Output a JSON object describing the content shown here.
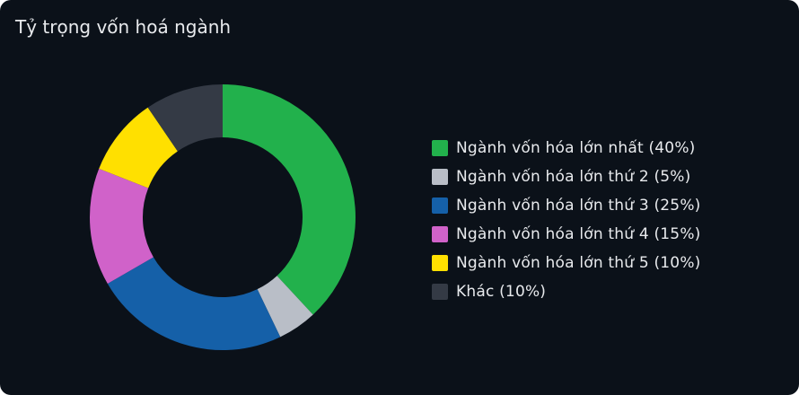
{
  "chart_data": {
    "type": "pie",
    "title": "Tỷ trọng vốn hoá ngành",
    "categories": [
      "Ngành vốn hóa lớn nhất",
      "Ngành vốn hóa lớn thứ 2",
      "Ngành vốn hóa lớn thứ 3",
      "Ngành vốn hóa lớn thứ 4",
      "Ngành vốn hóa lớn thứ 5",
      "Khác"
    ],
    "values": [
      40,
      5,
      25,
      15,
      10,
      10
    ],
    "legend_labels": [
      "Ngành vốn hóa lớn nhất (40%)",
      "Ngành vốn hóa lớn thứ 2 (5%)",
      "Ngành vốn hóa lớn thứ 3 (25%)",
      "Ngành vốn hóa lớn thứ 4 (15%)",
      "Ngành vốn hóa lớn thứ 5 (10%)",
      "Khác (10%)"
    ],
    "colors": [
      "#22b14c",
      "#b9bec7",
      "#1560a8",
      "#d062c9",
      "#ffe000",
      "#343a45"
    ],
    "legend_position": "right"
  }
}
